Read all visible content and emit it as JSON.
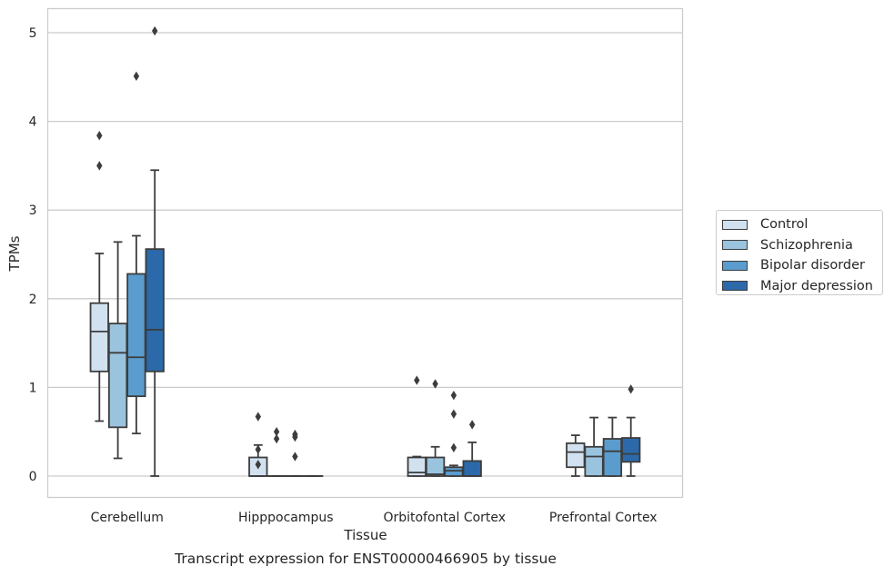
{
  "caption": "Transcript expression for ENST00000466905 by tissue",
  "chart_data": {
    "type": "box",
    "xlabel": "Tissue",
    "ylabel": "TPMs",
    "ylim": [
      -0.25,
      5.28
    ],
    "yticks": [
      0,
      1,
      2,
      3,
      4,
      5
    ],
    "grid": "horizontal",
    "legend_position": "right",
    "categories": [
      "Cerebellum",
      "Hipppocampus",
      "Orbitofontal Cortex",
      "Prefrontal Cortex"
    ],
    "series": [
      {
        "name": "Control",
        "color": "#d1e1f0",
        "boxes": [
          {
            "whisker_low": 0.62,
            "q1": 1.18,
            "median": 1.63,
            "q3": 1.95,
            "whisker_high": 2.51,
            "outliers": [
              3.5,
              3.84
            ]
          },
          {
            "whisker_low": 0.0,
            "q1": 0.0,
            "median": 0.0,
            "q3": 0.21,
            "whisker_high": 0.35,
            "outliers": [
              0.67,
              0.3,
              0.13
            ]
          },
          {
            "whisker_low": 0.0,
            "q1": 0.0,
            "median": 0.04,
            "q3": 0.21,
            "whisker_high": 0.22,
            "outliers": [
              1.08
            ]
          },
          {
            "whisker_low": 0.0,
            "q1": 0.1,
            "median": 0.27,
            "q3": 0.37,
            "whisker_high": 0.46,
            "outliers": []
          }
        ]
      },
      {
        "name": "Schizophrenia",
        "color": "#9ac3de",
        "boxes": [
          {
            "whisker_low": 0.2,
            "q1": 0.55,
            "median": 1.39,
            "q3": 1.72,
            "whisker_high": 2.64,
            "outliers": []
          },
          {
            "whisker_low": 0.0,
            "q1": 0.0,
            "median": 0.0,
            "q3": 0.0,
            "whisker_high": 0.0,
            "outliers": [
              0.5,
              0.42
            ]
          },
          {
            "whisker_low": 0.0,
            "q1": 0.0,
            "median": 0.02,
            "q3": 0.21,
            "whisker_high": 0.33,
            "outliers": [
              1.04
            ]
          },
          {
            "whisker_low": 0.0,
            "q1": 0.0,
            "median": 0.22,
            "q3": 0.33,
            "whisker_high": 0.66,
            "outliers": []
          }
        ]
      },
      {
        "name": "Bipolar disorder",
        "color": "#5a9ccd",
        "boxes": [
          {
            "whisker_low": 0.48,
            "q1": 0.9,
            "median": 1.34,
            "q3": 2.28,
            "whisker_high": 2.71,
            "outliers": [
              4.51
            ]
          },
          {
            "whisker_low": 0.0,
            "q1": 0.0,
            "median": 0.0,
            "q3": 0.0,
            "whisker_high": 0.0,
            "outliers": [
              0.47,
              0.44,
              0.22
            ]
          },
          {
            "whisker_low": 0.0,
            "q1": 0.0,
            "median": 0.06,
            "q3": 0.1,
            "whisker_high": 0.12,
            "outliers": [
              0.91,
              0.7,
              0.32
            ]
          },
          {
            "whisker_low": 0.0,
            "q1": 0.0,
            "median": 0.28,
            "q3": 0.42,
            "whisker_high": 0.66,
            "outliers": []
          }
        ]
      },
      {
        "name": "Major depression",
        "color": "#2b69aa",
        "boxes": [
          {
            "whisker_low": 0.0,
            "q1": 1.18,
            "median": 1.65,
            "q3": 2.56,
            "whisker_high": 3.45,
            "outliers": [
              5.02
            ]
          },
          {
            "whisker_low": 0.0,
            "q1": 0.0,
            "median": 0.0,
            "q3": 0.0,
            "whisker_high": 0.0,
            "outliers": []
          },
          {
            "whisker_low": 0.0,
            "q1": 0.0,
            "median": 0.0,
            "q3": 0.17,
            "whisker_high": 0.38,
            "outliers": [
              0.58
            ]
          },
          {
            "whisker_low": 0.0,
            "q1": 0.16,
            "median": 0.25,
            "q3": 0.43,
            "whisker_high": 0.66,
            "outliers": [
              0.98
            ]
          }
        ]
      }
    ]
  }
}
